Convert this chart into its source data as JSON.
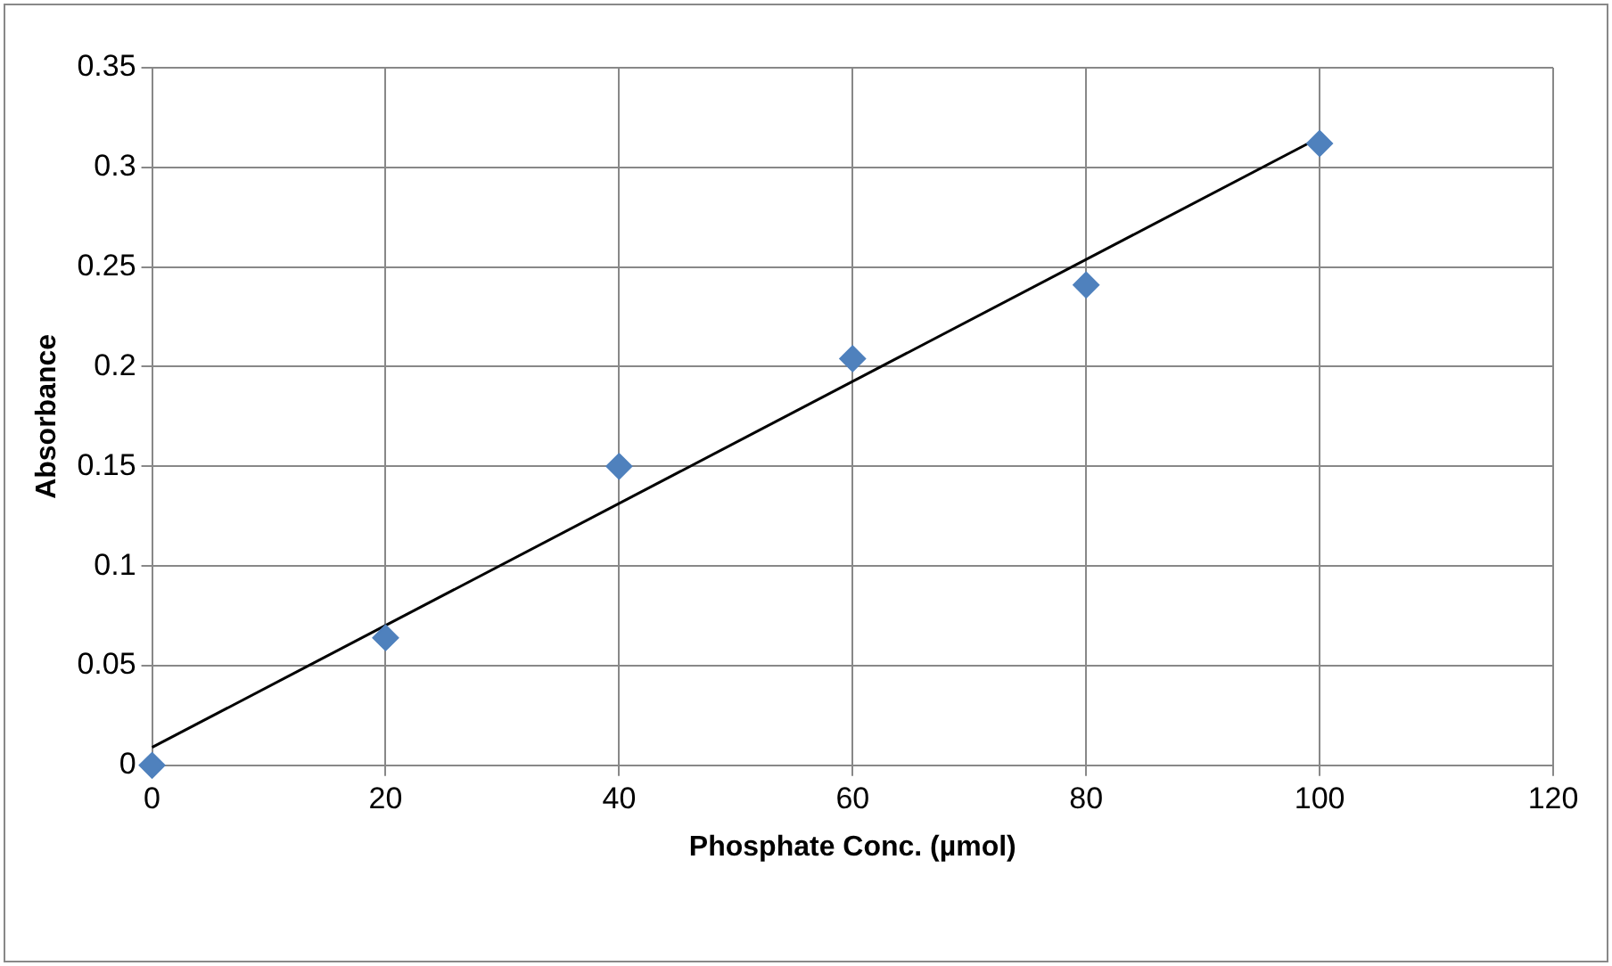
{
  "chart_data": {
    "type": "scatter",
    "xlabel": "Phosphate Conc. (µmol)",
    "ylabel": "Absorbance",
    "xlim": [
      0,
      120
    ],
    "xticks": [
      0,
      20,
      40,
      60,
      80,
      100,
      120
    ],
    "ylim": [
      0,
      0.35
    ],
    "yticks": [
      0,
      0.05,
      0.1,
      0.15,
      0.2,
      0.25,
      0.3,
      0.35
    ],
    "grid": true,
    "legend": false,
    "series": [
      {
        "type": "scatter",
        "marker": "diamond",
        "color": "#4f81bd",
        "x": [
          0,
          20,
          40,
          60,
          80,
          100
        ],
        "values": [
          0,
          0.064,
          0.15,
          0.204,
          0.241,
          0.312
        ]
      },
      {
        "type": "line",
        "marker": "none",
        "color": "#000000",
        "x": [
          0,
          100
        ],
        "values": [
          0.009,
          0.315
        ]
      }
    ]
  }
}
